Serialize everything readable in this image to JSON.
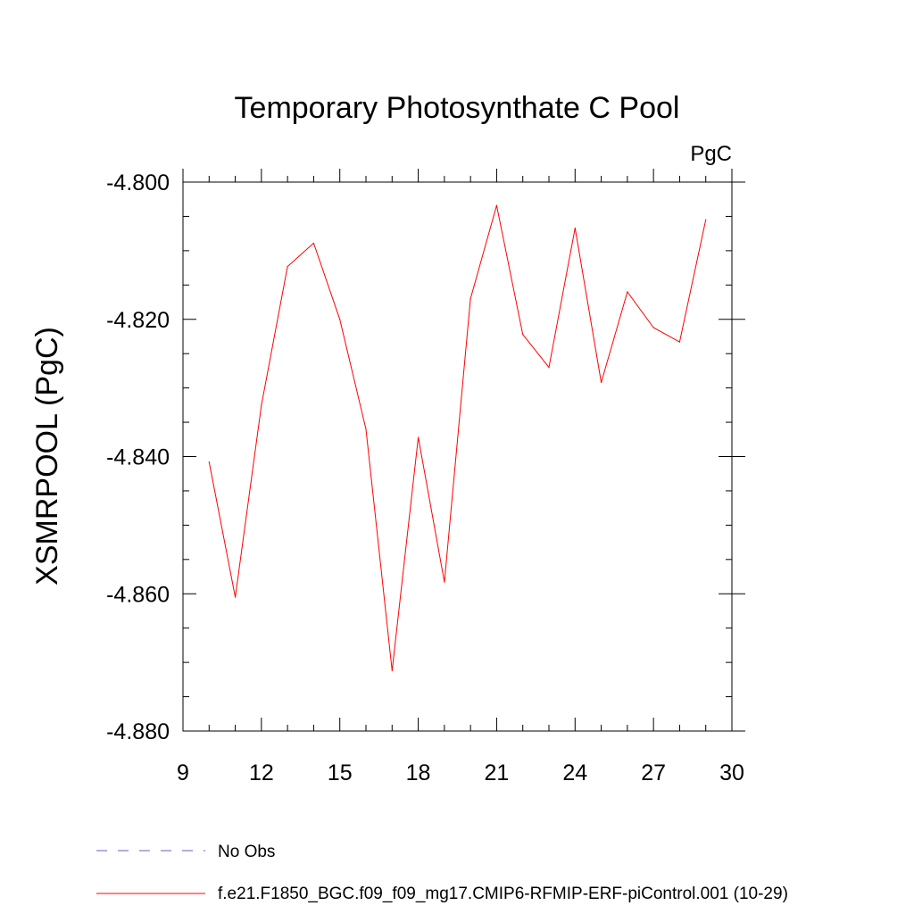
{
  "chart_data": {
    "type": "line",
    "title": "Temporary Photosynthate C Pool",
    "units_label": "PgC",
    "ylabel": "XSMRPOOL  (PgC)",
    "xlabel": "",
    "xlim": [
      9,
      30
    ],
    "ylim": [
      -4.88,
      -4.8
    ],
    "xticks": [
      9,
      12,
      15,
      18,
      21,
      24,
      27,
      30
    ],
    "yticks": [
      -4.88,
      -4.86,
      -4.84,
      -4.82,
      -4.8
    ],
    "ytick_labels": [
      "-4.880",
      "-4.860",
      "-4.840",
      "-4.820",
      "-4.800"
    ],
    "x_minor_step": 1,
    "y_minor_step": 0.005,
    "series": [
      {
        "name": "f.e21.F1850_BGC.f09_f09_mg17.CMIP6-RFMIP-ERF-piControl.001 (10-29)",
        "color": "#ff0000",
        "style": "solid",
        "x": [
          10,
          11,
          12,
          13,
          14,
          15,
          16,
          17,
          18,
          19,
          20,
          21,
          22,
          23,
          24,
          25,
          26,
          27,
          28,
          29
        ],
        "values": [
          -4.8408,
          -4.8605,
          -4.8325,
          -4.8123,
          -4.8089,
          -4.82,
          -4.836,
          -4.8712,
          -4.8372,
          -4.8583,
          -4.817,
          -4.8034,
          -4.8222,
          -4.827,
          -4.8067,
          -4.8292,
          -4.816,
          -4.8212,
          -4.8233,
          -4.8055
        ]
      }
    ],
    "legend": [
      {
        "label": "No Obs",
        "color": "#6a5acd",
        "style": "dashed"
      },
      {
        "label": "f.e21.F1850_BGC.f09_f09_mg17.CMIP6-RFMIP-ERF-piControl.001 (10-29)",
        "color": "#ff0000",
        "style": "solid"
      }
    ]
  }
}
